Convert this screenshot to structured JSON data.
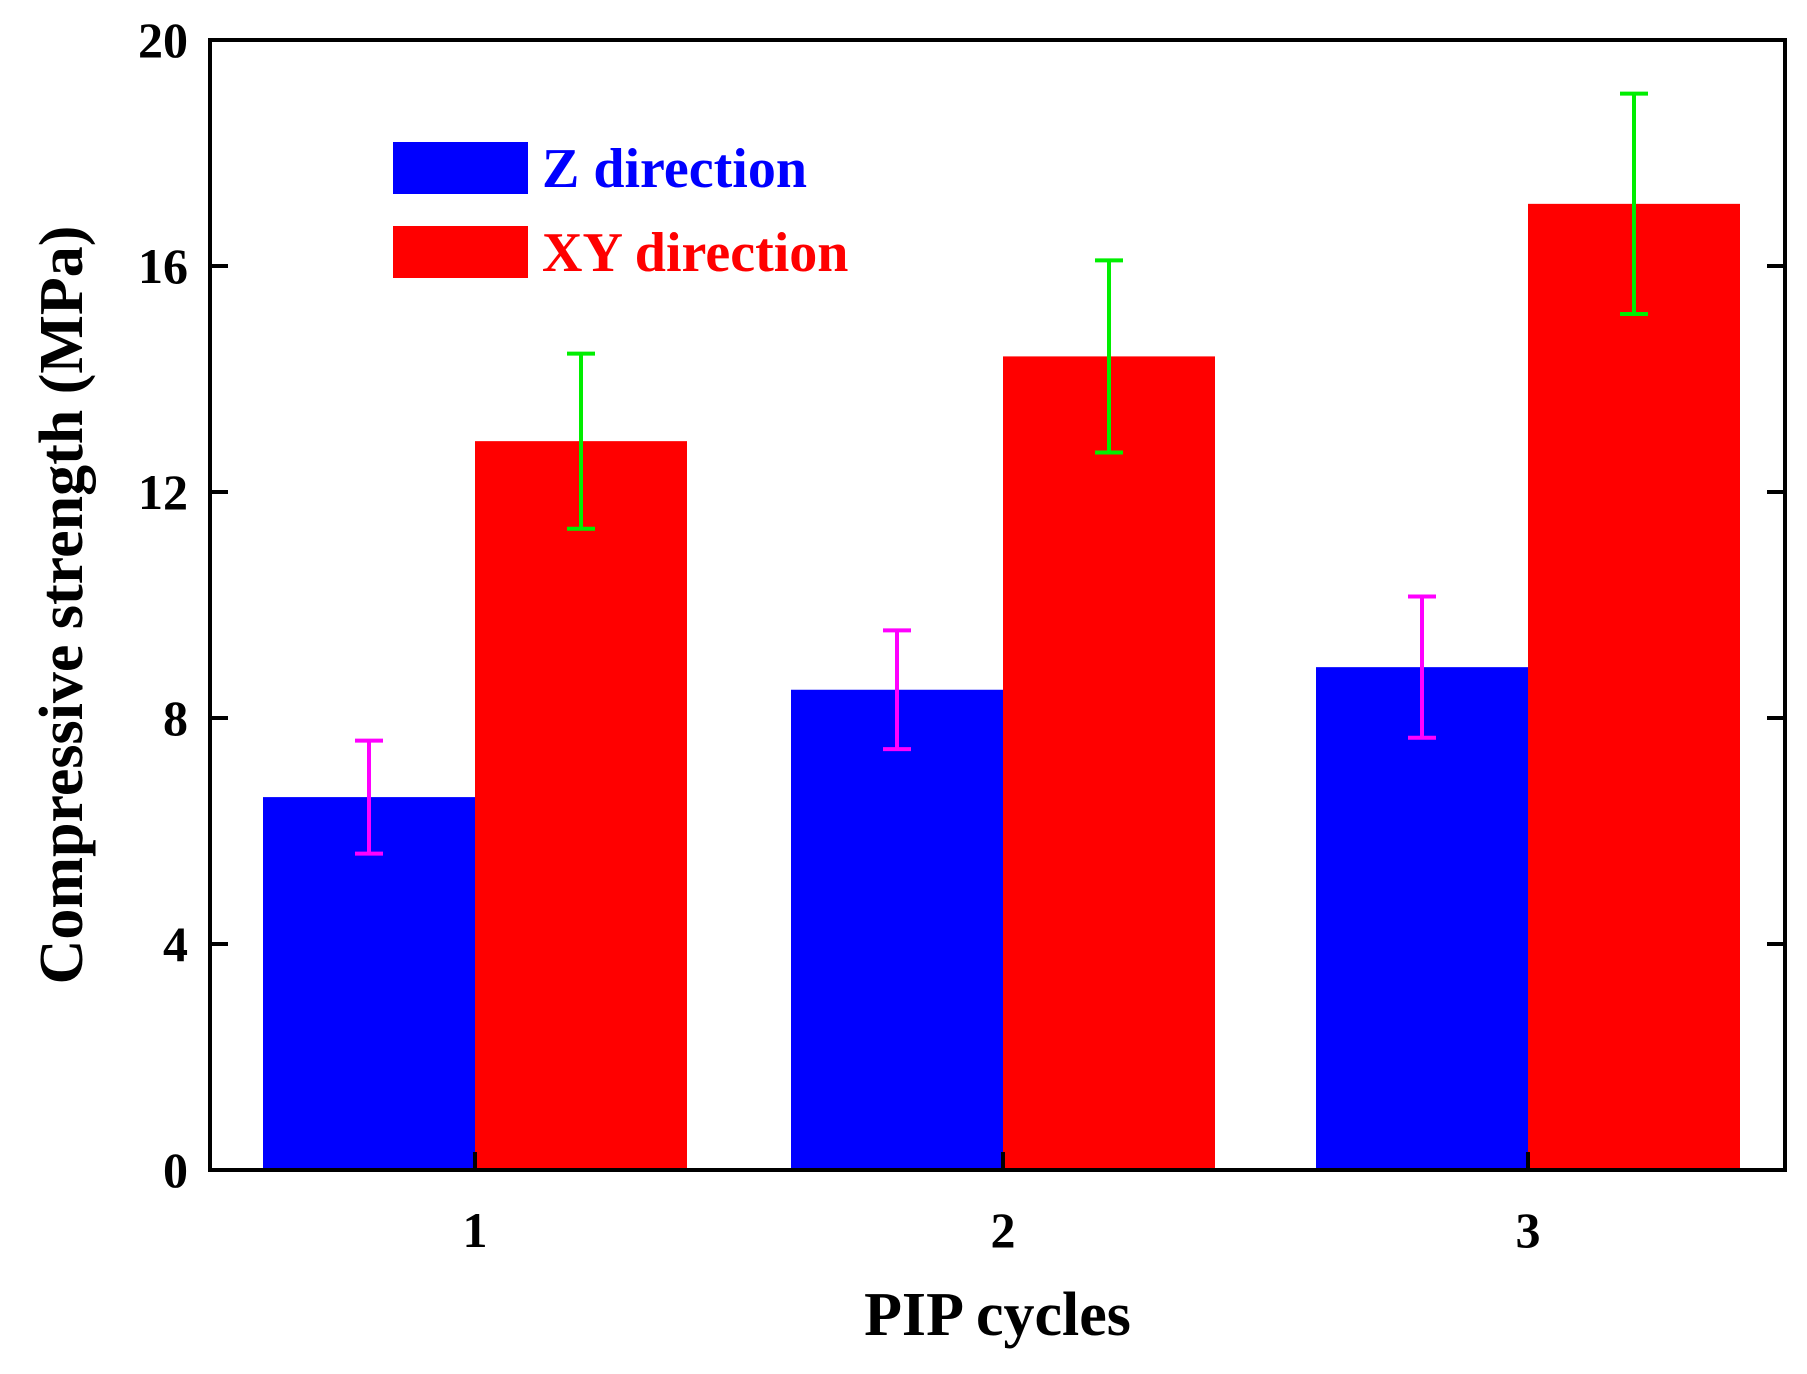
{
  "chart_data": {
    "type": "bar",
    "title": "",
    "xlabel": "PIP cycles",
    "ylabel": "Compressive strength (MPa)",
    "categories": [
      "1",
      "2",
      "3"
    ],
    "ylim": [
      0,
      20
    ],
    "yticks": [
      "0",
      "4",
      "8",
      "12",
      "16",
      "20"
    ],
    "grid": false,
    "legend_position": "top-left",
    "series": [
      {
        "name": "Z direction",
        "color": "#0000ff",
        "error_color": "#ff00ff",
        "values": [
          6.6,
          8.5,
          8.9
        ],
        "errors": [
          1.0,
          1.05,
          1.25
        ]
      },
      {
        "name": "XY direction",
        "color": "#ff0000",
        "error_color": "#00ee00",
        "values": [
          12.9,
          14.4,
          17.1
        ],
        "errors": [
          1.55,
          1.7,
          1.95
        ]
      }
    ]
  }
}
